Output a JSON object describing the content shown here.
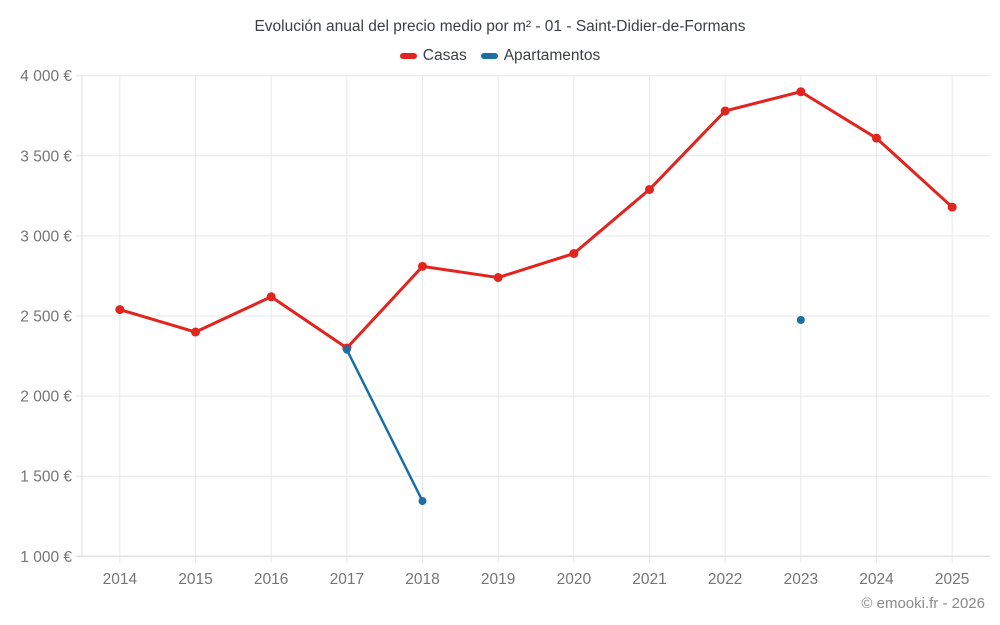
{
  "chart_data": {
    "type": "line",
    "title": "Evolución anual del precio medio por m² - 01 - Saint-Didier-de-Formans",
    "categories": [
      "2014",
      "2015",
      "2016",
      "2017",
      "2018",
      "2019",
      "2020",
      "2021",
      "2022",
      "2023",
      "2024",
      "2025"
    ],
    "series": [
      {
        "name": "Casas",
        "color": "#e2231e",
        "values": [
          2540,
          2400,
          2620,
          2300,
          2810,
          2740,
          2890,
          3290,
          3780,
          3900,
          3610,
          3180
        ]
      },
      {
        "name": "Apartamentos",
        "color": "#1a6fa5",
        "values": [
          null,
          null,
          null,
          2290,
          1345,
          null,
          null,
          null,
          null,
          2475,
          null,
          null
        ]
      }
    ],
    "xlabel": "",
    "ylabel": "",
    "ylim": [
      1000,
      4000
    ],
    "yticks": [
      {
        "value": 1000,
        "label": "1 000 €"
      },
      {
        "value": 1500,
        "label": "1 500 €"
      },
      {
        "value": 2000,
        "label": "2 000 €"
      },
      {
        "value": 2500,
        "label": "2 500 €"
      },
      {
        "value": 3000,
        "label": "3 000 €"
      },
      {
        "value": 3500,
        "label": "3 500 €"
      },
      {
        "value": 4000,
        "label": "4 000 €"
      }
    ],
    "grid": true,
    "legend_position": "top"
  },
  "footer": {
    "copyright": "© emooki.fr - 2026"
  },
  "colors": {
    "background": "#ffffff",
    "title_text": "#3c4043",
    "tick_text": "#757575",
    "grid_line": "#e7e7e7",
    "axis_line": "#dadada",
    "footer_text": "#8a8a8a",
    "casas": "#e2231e",
    "apartamentos": "#1a6fa5"
  }
}
